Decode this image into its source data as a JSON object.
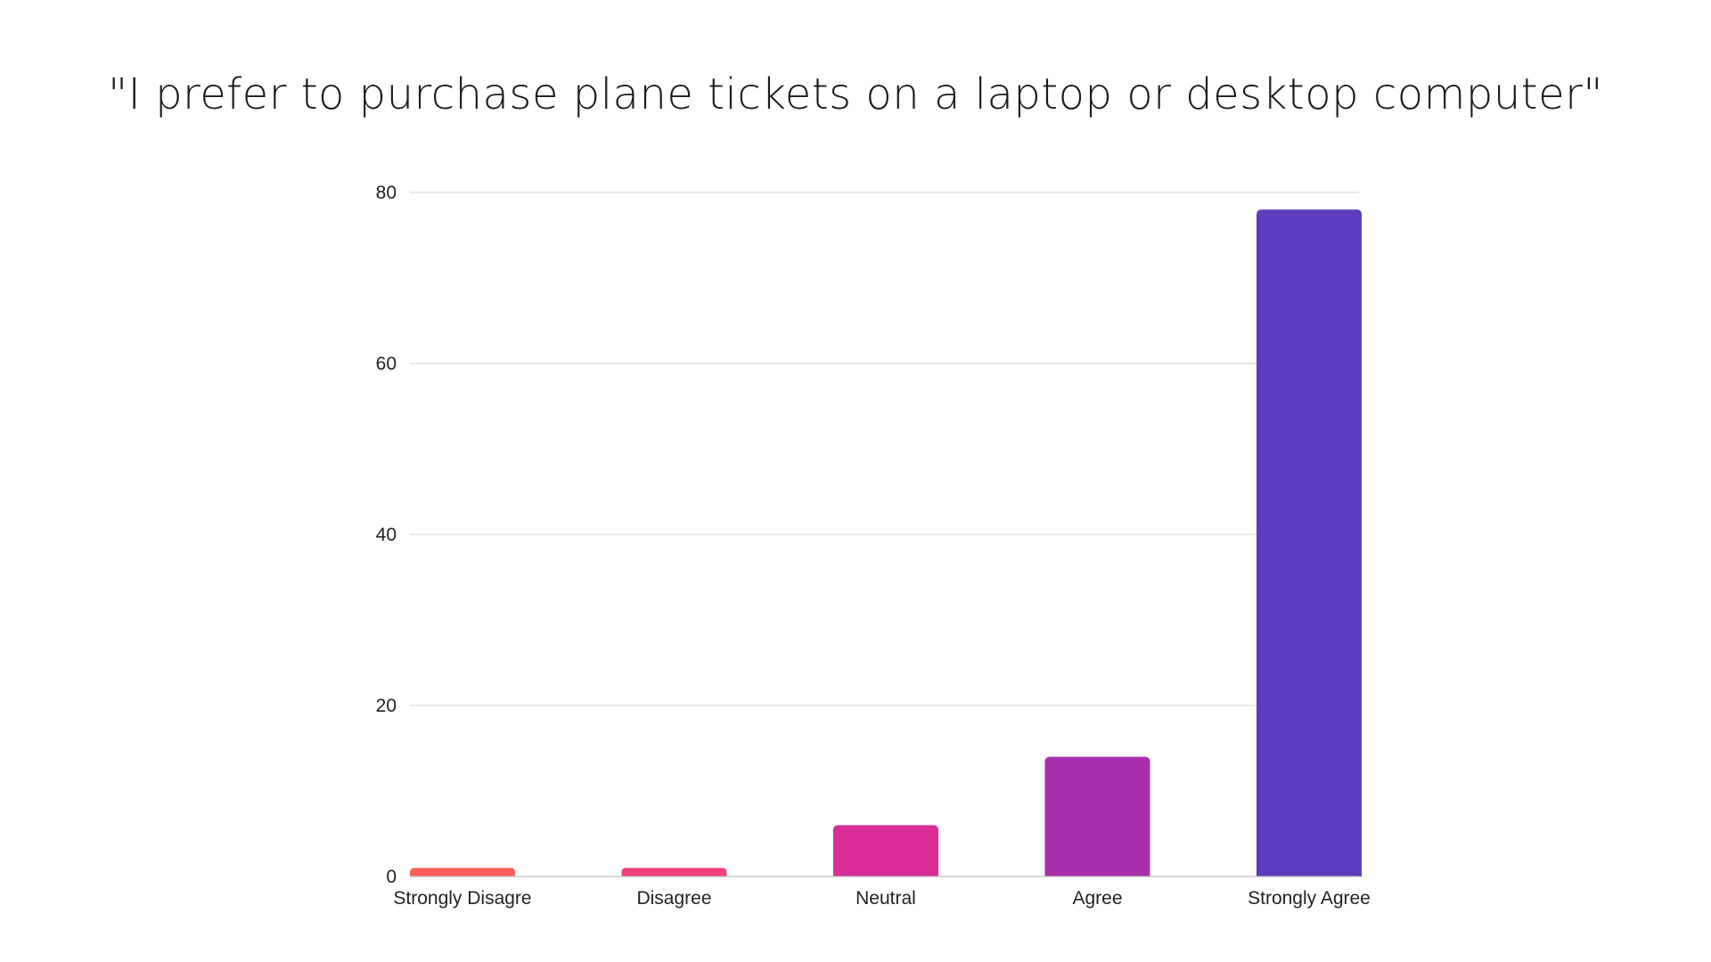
{
  "chart_data": {
    "type": "bar",
    "title": "\"I prefer to purchase plane tickets on a laptop or desktop computer\"",
    "xlabel": "",
    "ylabel": "",
    "categories": [
      "Strongly Disagre",
      "Disagree",
      "Neutral",
      "Agree",
      "Strongly Agree"
    ],
    "values": [
      1,
      1,
      6,
      14,
      78
    ],
    "colors": [
      "#ff5e5e",
      "#f0427d",
      "#d82d96",
      "#a92eac",
      "#5e3dbf"
    ],
    "ylim": [
      0,
      80
    ],
    "yticks": [
      0,
      20,
      40,
      60,
      80
    ],
    "grid": true,
    "legend": "none"
  }
}
